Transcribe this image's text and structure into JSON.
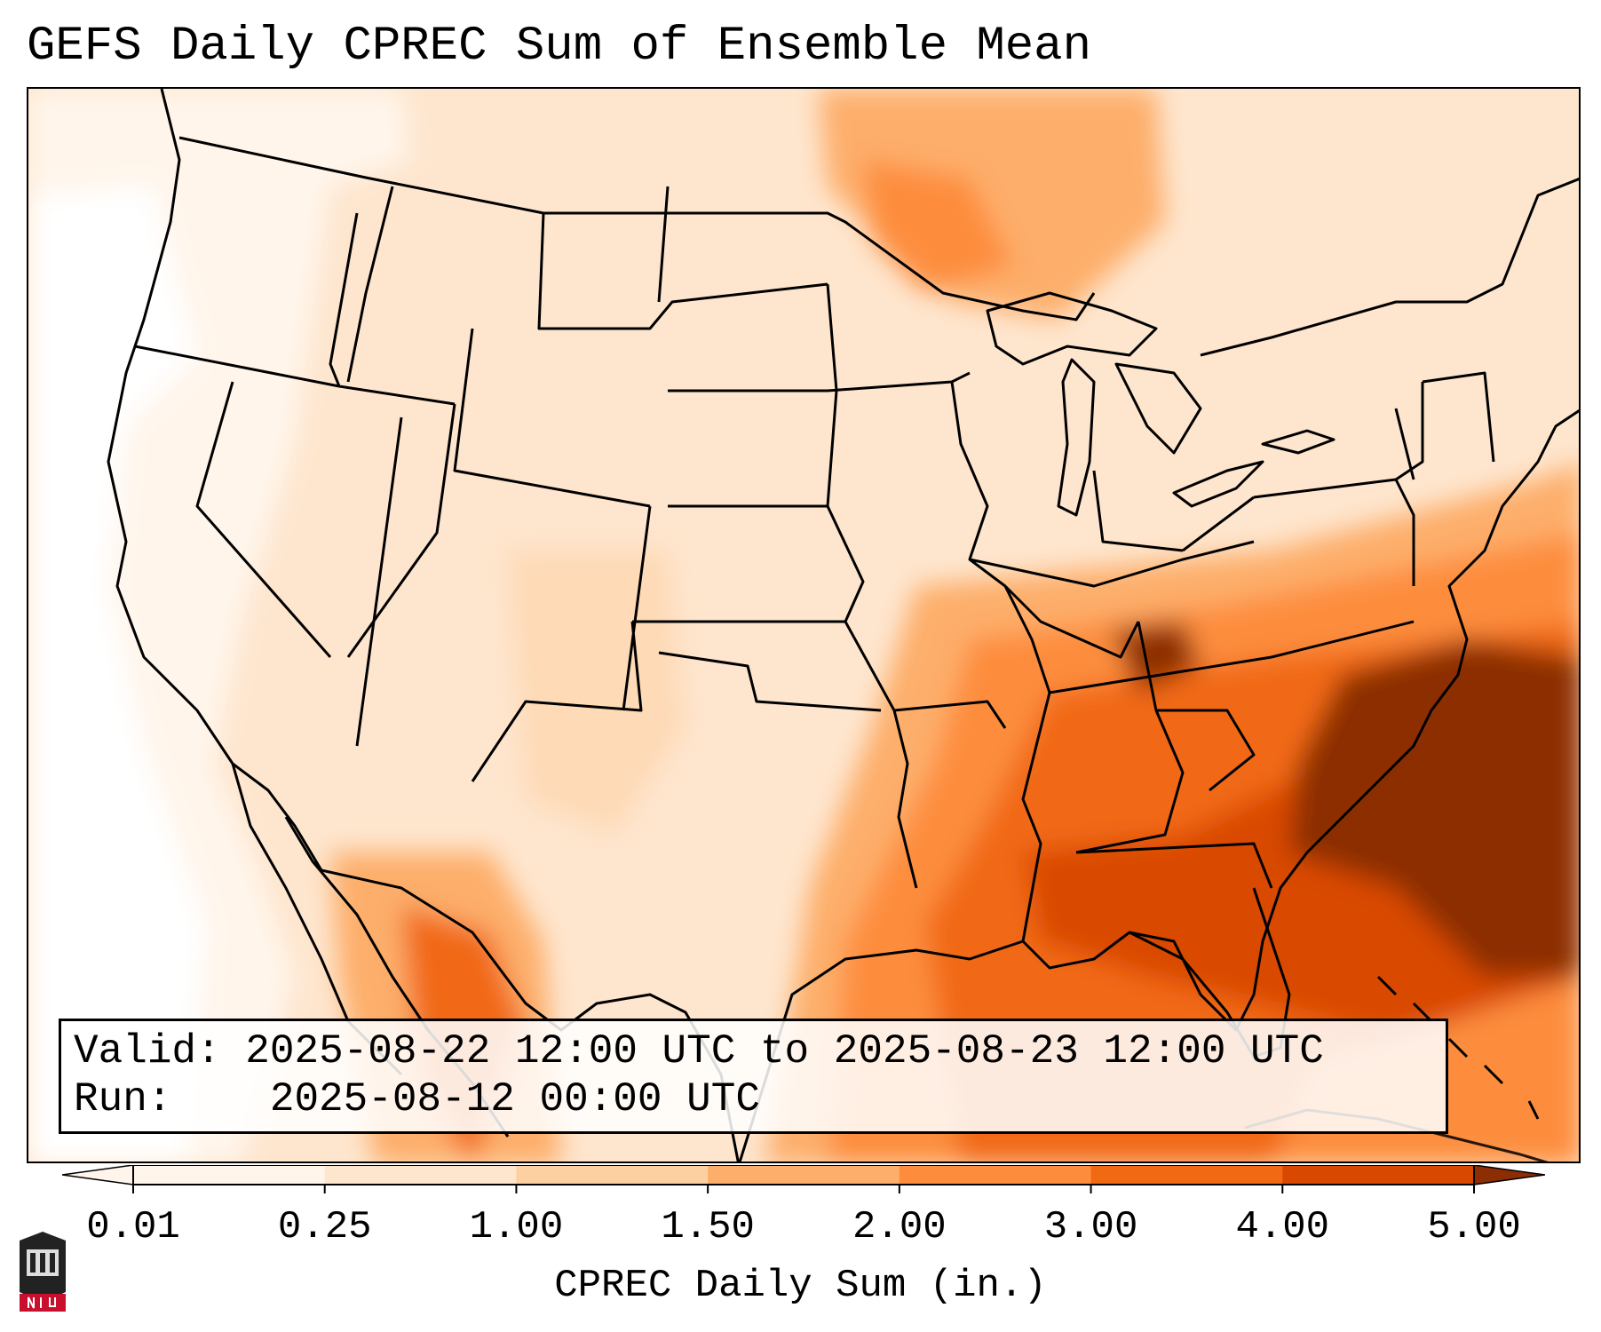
{
  "title": "GEFS Daily CPREC Sum of Ensemble Mean",
  "info": {
    "valid_label": "Valid:",
    "valid_value": "2025-08-22 12:00 UTC to 2025-08-23 12:00 UTC",
    "run_label": "Run:",
    "run_value": "2025-08-12 00:00 UTC"
  },
  "colorbar": {
    "label": "CPREC Daily Sum (in.)",
    "ticks": [
      "0.01",
      "0.25",
      "1.00",
      "1.50",
      "2.00",
      "3.00",
      "4.00",
      "5.00"
    ],
    "colors": [
      "#fff5eb",
      "#fee6ce",
      "#fdd0a2",
      "#fdae6b",
      "#fd8d3c",
      "#f16913",
      "#d94801",
      "#8c2d04"
    ],
    "extend": "both"
  },
  "map": {
    "projection": "Lambert conformal (CONUS)",
    "region": "Contiguous United States, southern Canada, northern Mexico, Gulf of Mexico, western Atlantic",
    "overlay_features": [
      "coastlines",
      "country borders",
      "state boundaries",
      "Great Lakes"
    ],
    "heaviest_precip_region": "Southeast U.S. and western Atlantic offshore of the Carolinas and Florida",
    "logo": "NIU"
  }
}
